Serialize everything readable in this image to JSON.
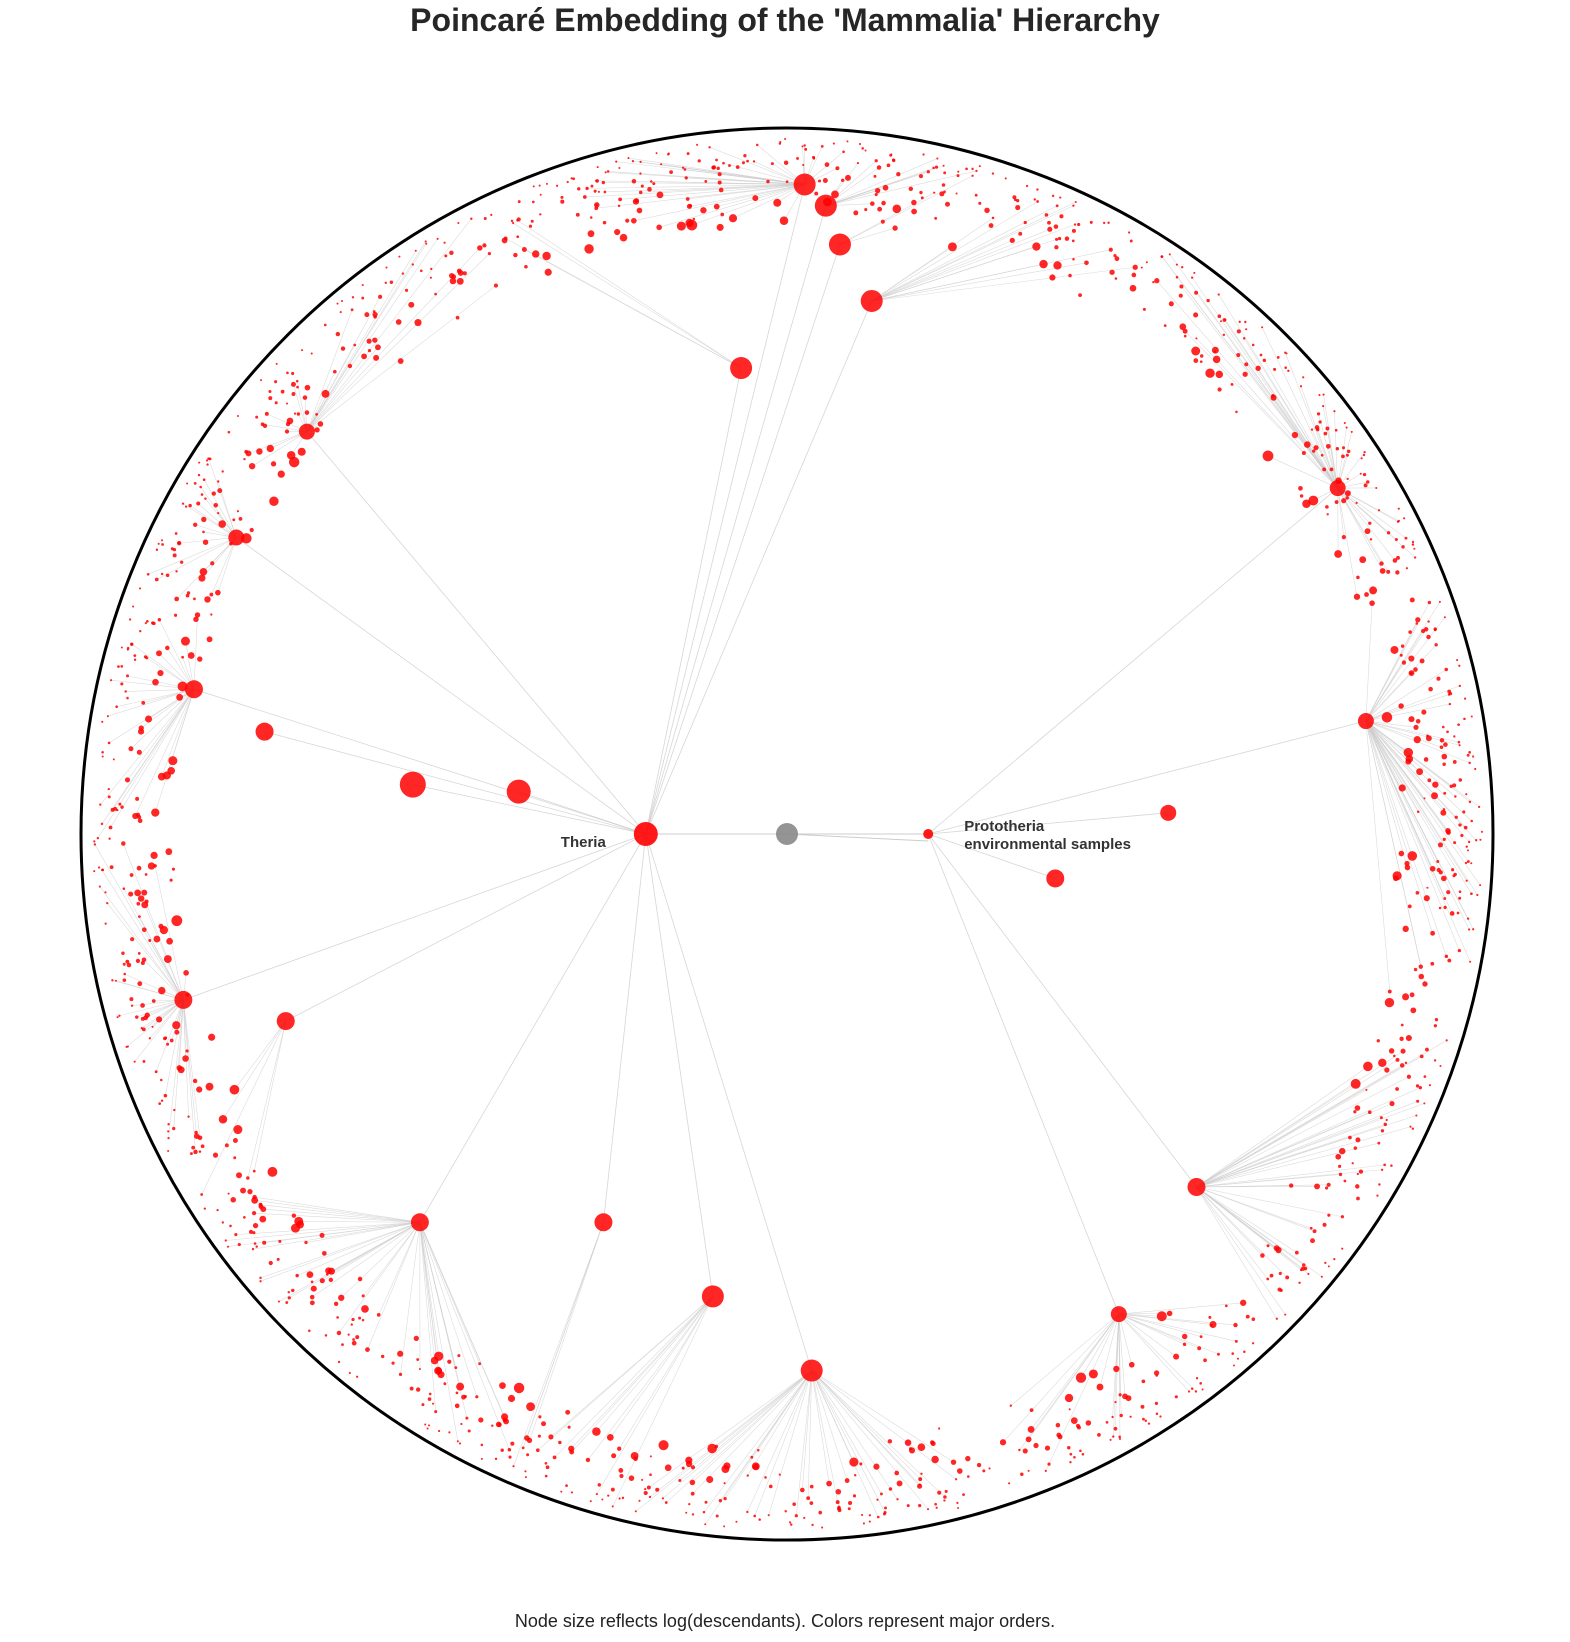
{
  "chart_data": {
    "type": "scatter",
    "title": "Poincaré Embedding of the 'Mammalia' Hierarchy",
    "caption": "Node size reflects log(descendants). Colors represent major orders.",
    "domain": {
      "x": [
        -1,
        1
      ],
      "y": [
        -1,
        1
      ]
    },
    "boundary": "unit circle",
    "grid": false,
    "colors": {
      "root": "#888888",
      "node": "#ff0000",
      "edge": "#cccccc",
      "boundary": "#000000",
      "text": "#333333"
    },
    "root": {
      "x": 0.0,
      "y": 0.0,
      "label": ""
    },
    "labeled_nodes": [
      {
        "label": "Theria",
        "x": -0.2,
        "y": 0.0
      },
      {
        "label": "Prototheria",
        "x": 0.2,
        "y": 0.0
      },
      {
        "label": "environmental samples",
        "x": 0.2,
        "y": -0.01
      }
    ],
    "hub_nodes": [
      {
        "x": -0.53,
        "y": 0.07,
        "size": 13
      },
      {
        "x": -0.38,
        "y": 0.06,
        "size": 12
      },
      {
        "x": -0.065,
        "y": 0.66,
        "size": 11
      },
      {
        "x": 0.12,
        "y": 0.755,
        "size": 11
      },
      {
        "x": 0.075,
        "y": 0.835,
        "size": 11
      },
      {
        "x": 0.055,
        "y": 0.89,
        "size": 11
      },
      {
        "x": 0.025,
        "y": 0.92,
        "size": 11
      },
      {
        "x": -0.105,
        "y": -0.655,
        "size": 11
      },
      {
        "x": 0.035,
        "y": -0.76,
        "size": 11
      },
      {
        "x": -0.74,
        "y": 0.145,
        "size": 9
      },
      {
        "x": -0.84,
        "y": 0.205,
        "size": 9
      },
      {
        "x": -0.855,
        "y": -0.235,
        "size": 9
      },
      {
        "x": -0.71,
        "y": -0.265,
        "size": 9
      },
      {
        "x": 0.38,
        "y": -0.063,
        "size": 9
      },
      {
        "x": 0.54,
        "y": 0.03,
        "size": 8
      },
      {
        "x": -0.52,
        "y": -0.55,
        "size": 9
      },
      {
        "x": -0.26,
        "y": -0.55,
        "size": 9
      },
      {
        "x": 0.58,
        "y": -0.5,
        "size": 9
      },
      {
        "x": 0.47,
        "y": -0.68,
        "size": 8
      },
      {
        "x": -0.68,
        "y": 0.57,
        "size": 8
      },
      {
        "x": -0.78,
        "y": 0.42,
        "size": 8
      },
      {
        "x": 0.78,
        "y": 0.49,
        "size": 8
      },
      {
        "x": 0.82,
        "y": 0.16,
        "size": 8
      }
    ],
    "n_periphery_nodes_approx": 1400
  }
}
